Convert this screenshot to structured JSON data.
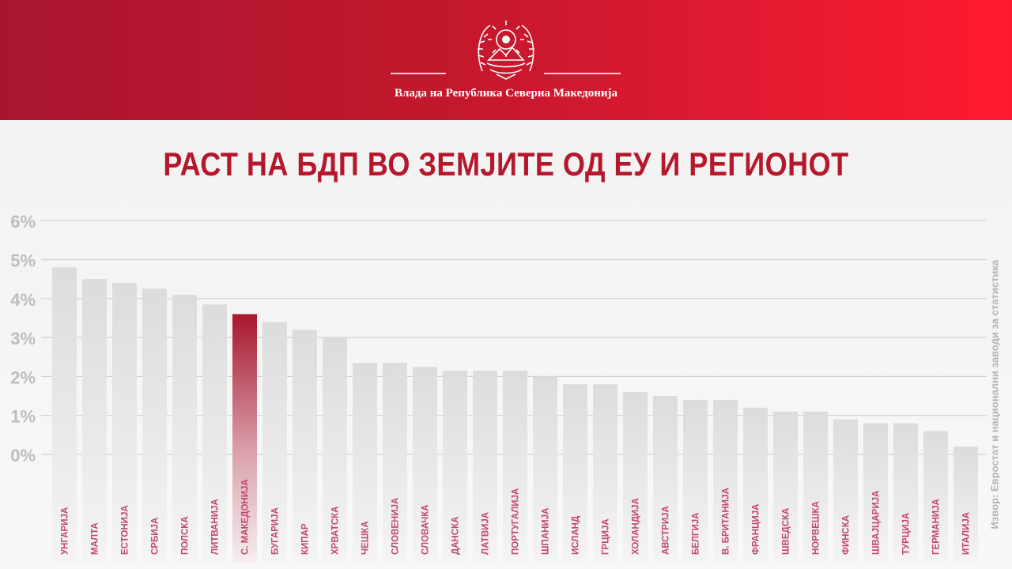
{
  "header": {
    "government_name": "Влада на Република Северна Македонија"
  },
  "title": "РАСТ НА БДП ВО ЗЕМЈИТЕ ОД ЕУ И РЕГИОНОТ",
  "source": "Извор: Евростат и национални заводи за статистика",
  "colors": {
    "header_start": "#a8162e",
    "header_end": "#ff1a2e",
    "title": "#b5182d",
    "highlight": "#a8162e",
    "bar": "#e2e2e2",
    "gridline": "#d0d0d0",
    "tick": "#bdbdbd",
    "category_label": "#c2476a"
  },
  "chart_data": {
    "type": "bar",
    "categories": [
      "УНГАРИЈА",
      "МАЛТА",
      "ЕСТОНИЈА",
      "СРБИЈА",
      "ПОЛСКА",
      "ЛИТВАНИЈА",
      "С. МАКЕДОНИЈА",
      "БУГАРИЈА",
      "КИПАР",
      "ХРВАТСКА",
      "ЧЕШКА",
      "СЛОВЕНИЈА",
      "СЛОВАЧКА",
      "ДАНСКА",
      "ЛАТВИЈА",
      "ПОРТУГАЛИЈА",
      "ШПАНИЈА",
      "ИСЛАНД",
      "ГРЦИЈА",
      "ХОЛАНДИЈА",
      "АВСТРИЈА",
      "БЕЛГИЈА",
      "В. БРИТАНИЈА",
      "ФРАНЦИЈА",
      "ШВЕДСКА",
      "НОРВЕШКА",
      "ФИНСКА",
      "ШВАЈЦАРИЈА",
      "ТУРЦИЈА",
      "ГЕРМАНИЈА",
      "ИТАЛИЈА"
    ],
    "values": [
      4.8,
      4.5,
      4.4,
      4.25,
      4.1,
      3.85,
      3.6,
      3.4,
      3.2,
      3.0,
      2.35,
      2.35,
      2.25,
      2.15,
      2.15,
      2.15,
      2.0,
      1.8,
      1.8,
      1.6,
      1.5,
      1.4,
      1.4,
      1.2,
      1.1,
      1.1,
      0.9,
      0.8,
      0.8,
      0.6,
      0.2
    ],
    "highlight": "С. МАКЕДОНИЈА",
    "yticks": [
      "0%",
      "1%",
      "2%",
      "3%",
      "4%",
      "5%",
      "6%"
    ],
    "ylim": [
      0,
      6
    ],
    "grid": true
  }
}
